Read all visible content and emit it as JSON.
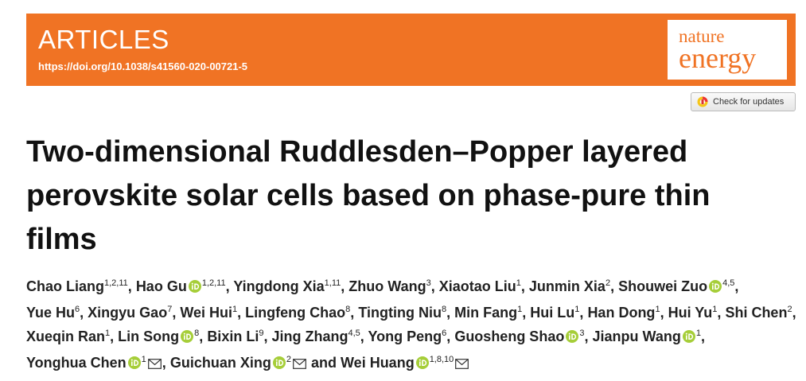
{
  "header": {
    "section": "ARTICLES",
    "doi": "https://doi.org/10.1038/s41560-020-00721-5",
    "journal_line1": "nature",
    "journal_line2": "energy",
    "check_button": "Check for updates"
  },
  "title": "Two-dimensional Ruddlesden–Popper layered perovskite solar cells based on phase-pure thin films",
  "authors_separator": ",",
  "authors_conjunction": "and",
  "authors": [
    {
      "name": "Chao Liang",
      "affiliations": "1,2,11"
    },
    {
      "name": "Hao Gu",
      "affiliations": "1,2,11",
      "orcid": true
    },
    {
      "name": "Yingdong Xia",
      "affiliations": "1,11"
    },
    {
      "name": "Zhuo Wang",
      "affiliations": "3"
    },
    {
      "name": "Xiaotao Liu",
      "affiliations": "1"
    },
    {
      "name": "Junmin Xia",
      "affiliations": "2"
    },
    {
      "name": "Shouwei Zuo",
      "affiliations": "4,5",
      "orcid": true
    },
    {
      "name": "Yue Hu",
      "affiliations": "6"
    },
    {
      "name": "Xingyu Gao",
      "affiliations": "7"
    },
    {
      "name": "Wei Hui",
      "affiliations": "1"
    },
    {
      "name": "Lingfeng Chao",
      "affiliations": "8"
    },
    {
      "name": "Tingting Niu",
      "affiliations": "8"
    },
    {
      "name": "Min Fang",
      "affiliations": "1"
    },
    {
      "name": "Hui Lu",
      "affiliations": "1"
    },
    {
      "name": "Han Dong",
      "affiliations": "1"
    },
    {
      "name": "Hui Yu",
      "affiliations": "1"
    },
    {
      "name": "Shi Chen",
      "affiliations": "2"
    },
    {
      "name": "Xueqin Ran",
      "affiliations": "1"
    },
    {
      "name": "Lin Song",
      "affiliations": "8",
      "orcid": true
    },
    {
      "name": "Bixin Li",
      "affiliations": "9"
    },
    {
      "name": "Jing Zhang",
      "affiliations": "4,5"
    },
    {
      "name": "Yong Peng",
      "affiliations": "6"
    },
    {
      "name": "Guosheng Shao",
      "affiliations": "3",
      "orcid": true
    },
    {
      "name": "Jianpu Wang",
      "affiliations": "1",
      "orcid": true
    },
    {
      "name": "Yonghua Chen",
      "affiliations": "1",
      "orcid": true,
      "email": true
    },
    {
      "name": "Guichuan Xing",
      "affiliations": "2",
      "orcid": true,
      "email": true
    },
    {
      "name": "Wei Huang",
      "affiliations": "1,8,10",
      "orcid": true,
      "email": true
    }
  ]
}
